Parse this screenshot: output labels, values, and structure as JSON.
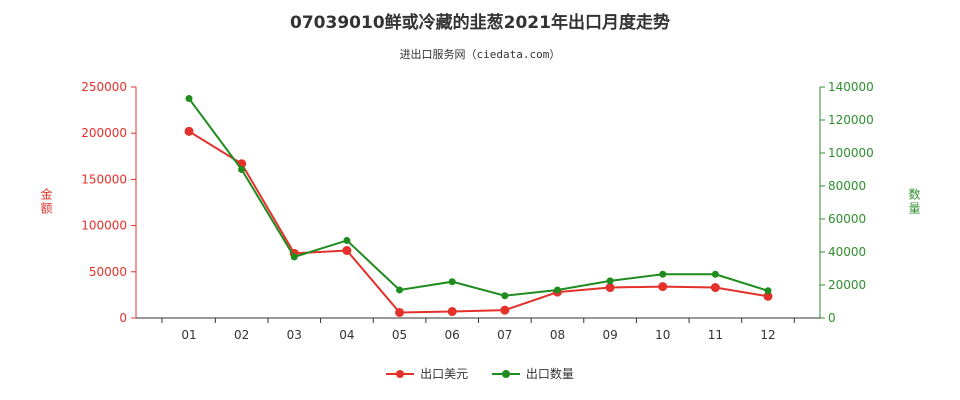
{
  "title": "07039010鲜或冷藏的韭葱2021年出口月度走势",
  "subtitle": "进出口服务网（ciedata.com）",
  "colors": {
    "left_axis": "#e4312b",
    "right_axis": "#2f8f2f",
    "amount_series": "#e4312b",
    "quantity_series": "#1e8c1e"
  },
  "chart_data": {
    "type": "line",
    "title": "07039010鲜或冷藏的韭葱2021年出口月度走势",
    "categories": [
      "01",
      "02",
      "03",
      "04",
      "05",
      "06",
      "07",
      "08",
      "09",
      "10",
      "11",
      "12"
    ],
    "y_left": {
      "label": "金额",
      "range": [
        0,
        250000
      ],
      "ticks": [
        "0",
        "50000",
        "100000",
        "150000",
        "200000",
        "250000"
      ]
    },
    "y_right": {
      "label": "数量",
      "range": [
        0,
        140000
      ],
      "ticks": [
        "0",
        "20000",
        "40000",
        "60000",
        "80000",
        "100000",
        "120000",
        "140000"
      ]
    },
    "legend_position": "bottom",
    "grid": false,
    "series": [
      {
        "name": "出口美元",
        "axis": "left",
        "values": [
          202000,
          167000,
          70000,
          73000,
          6000,
          7000,
          8500,
          28000,
          33000,
          34000,
          33000,
          23500
        ]
      },
      {
        "name": "出口数量",
        "axis": "right",
        "values": [
          133000,
          90000,
          37000,
          47000,
          17000,
          22000,
          13500,
          17000,
          22500,
          26500,
          26500,
          16500
        ]
      }
    ]
  },
  "legend": {
    "items": [
      "出口美元",
      "出口数量"
    ]
  }
}
